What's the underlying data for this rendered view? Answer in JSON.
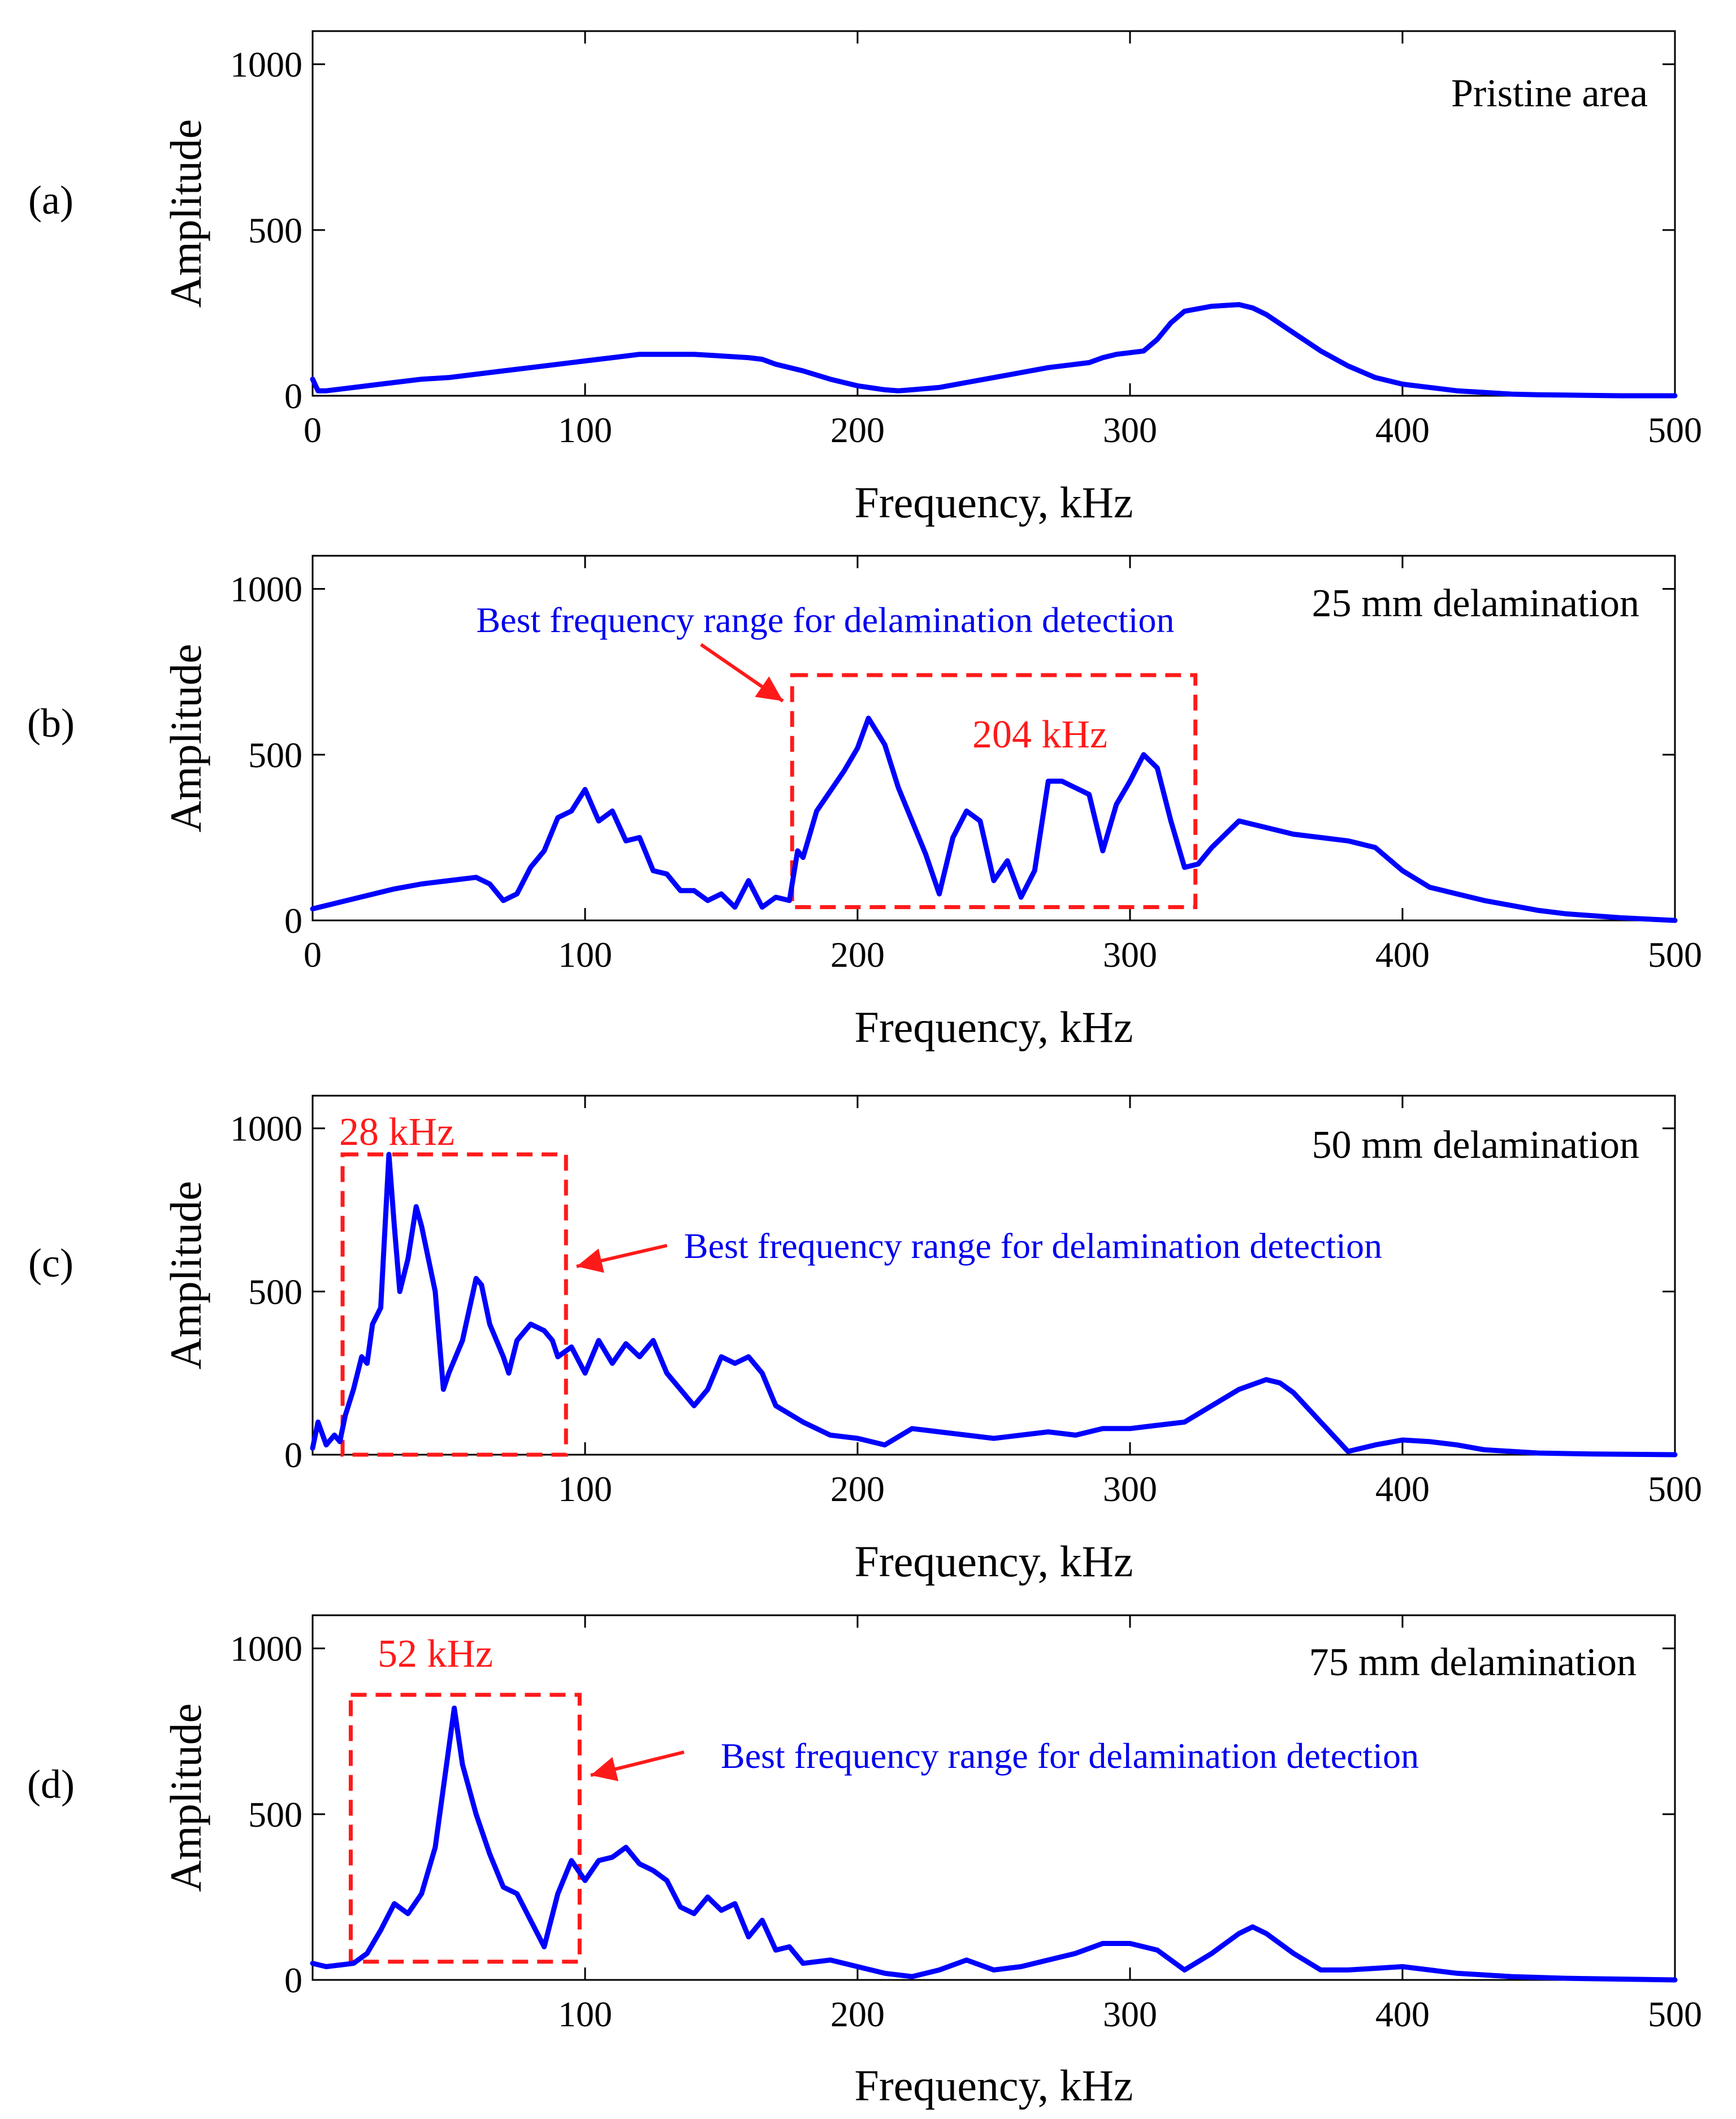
{
  "chart_data": [
    {
      "type": "line",
      "panel_label": "(a)",
      "annotation": "Pristine area",
      "xlabel": "Frequency, kHz",
      "ylabel": "Amplitude",
      "xlim": [
        0,
        500
      ],
      "ylim": [
        0,
        1100
      ],
      "xticks": [
        "0",
        "100",
        "200",
        "300",
        "400",
        "500"
      ],
      "yticks": [
        "0",
        "500",
        "1000"
      ],
      "series_color": "#0000ff",
      "x": [
        0,
        2,
        5,
        10,
        20,
        30,
        40,
        50,
        60,
        70,
        80,
        90,
        100,
        110,
        120,
        130,
        140,
        150,
        160,
        165,
        170,
        180,
        190,
        200,
        210,
        215,
        220,
        230,
        240,
        250,
        260,
        270,
        280,
        285,
        290,
        295,
        300,
        305,
        310,
        315,
        320,
        330,
        340,
        345,
        350,
        360,
        370,
        380,
        390,
        400,
        410,
        420,
        430,
        440,
        450,
        460,
        480,
        500
      ],
      "y": [
        50,
        15,
        15,
        20,
        30,
        40,
        50,
        55,
        65,
        75,
        85,
        95,
        105,
        115,
        125,
        125,
        125,
        120,
        115,
        110,
        95,
        75,
        50,
        30,
        18,
        15,
        18,
        25,
        40,
        55,
        70,
        85,
        95,
        100,
        115,
        125,
        130,
        135,
        170,
        220,
        255,
        270,
        275,
        265,
        245,
        190,
        135,
        90,
        55,
        35,
        25,
        15,
        10,
        5,
        3,
        2,
        0,
        0
      ]
    },
    {
      "type": "line",
      "panel_label": "(b)",
      "annotation": "25 mm delamination",
      "peak_label": "204 kHz",
      "range_note": "Best frequency range for delamination detection",
      "highlight_range": {
        "x": [
          176,
          324
        ],
        "y": [
          40,
          740
        ]
      },
      "xlabel": "Frequency, kHz",
      "ylabel": "Amplitude",
      "xlim": [
        0,
        500
      ],
      "ylim": [
        0,
        1100
      ],
      "xticks": [
        "0",
        "100",
        "200",
        "300",
        "400",
        "500"
      ],
      "yticks": [
        "0",
        "500",
        "1000"
      ],
      "series_color": "#0000ff",
      "x": [
        0,
        5,
        10,
        15,
        20,
        30,
        40,
        50,
        60,
        65,
        70,
        75,
        80,
        85,
        90,
        95,
        100,
        105,
        110,
        115,
        120,
        125,
        130,
        135,
        140,
        145,
        150,
        155,
        160,
        165,
        170,
        175,
        178,
        180,
        185,
        190,
        195,
        200,
        204,
        210,
        215,
        220,
        225,
        230,
        235,
        240,
        245,
        250,
        255,
        260,
        265,
        270,
        275,
        280,
        285,
        290,
        295,
        300,
        305,
        310,
        315,
        320,
        325,
        330,
        340,
        350,
        360,
        370,
        380,
        390,
        400,
        410,
        420,
        430,
        440,
        450,
        460,
        480,
        500
      ],
      "y": [
        35,
        45,
        55,
        65,
        75,
        95,
        110,
        120,
        130,
        110,
        60,
        80,
        160,
        210,
        310,
        330,
        395,
        300,
        330,
        240,
        250,
        150,
        140,
        90,
        90,
        60,
        80,
        40,
        120,
        40,
        70,
        60,
        210,
        190,
        330,
        390,
        450,
        520,
        610,
        530,
        400,
        300,
        200,
        80,
        250,
        330,
        300,
        120,
        180,
        70,
        150,
        420,
        420,
        400,
        380,
        210,
        350,
        420,
        500,
        460,
        300,
        160,
        170,
        220,
        300,
        280,
        260,
        250,
        240,
        220,
        150,
        100,
        80,
        60,
        45,
        30,
        20,
        8,
        0
      ]
    },
    {
      "type": "line",
      "panel_label": "(c)",
      "annotation": "50 mm delamination",
      "peak_label": "28 kHz",
      "range_note": "Best frequency range for delamination detection",
      "highlight_range": {
        "x": [
          11,
          93
        ],
        "y": [
          0,
          920
        ]
      },
      "xlabel": "Frequency, kHz",
      "ylabel": "Amplitude",
      "xlim": [
        0,
        500
      ],
      "ylim": [
        0,
        1100
      ],
      "xticks": [
        "100",
        "200",
        "300",
        "400",
        "500"
      ],
      "yticks": [
        "0",
        "500",
        "1000"
      ],
      "series_color": "#0000ff",
      "x": [
        0,
        2,
        5,
        8,
        10,
        12,
        15,
        18,
        20,
        22,
        25,
        28,
        30,
        32,
        35,
        38,
        40,
        45,
        48,
        50,
        55,
        60,
        62,
        65,
        70,
        72,
        75,
        80,
        85,
        88,
        90,
        95,
        100,
        105,
        110,
        115,
        120,
        125,
        130,
        135,
        140,
        145,
        150,
        155,
        160,
        165,
        170,
        180,
        190,
        200,
        210,
        220,
        230,
        240,
        250,
        260,
        270,
        280,
        290,
        300,
        310,
        320,
        330,
        340,
        350,
        355,
        360,
        370,
        380,
        385,
        390,
        400,
        410,
        420,
        430,
        450,
        470,
        500
      ],
      "y": [
        20,
        100,
        30,
        60,
        40,
        120,
        200,
        300,
        280,
        400,
        450,
        920,
        700,
        500,
        600,
        760,
        700,
        500,
        200,
        250,
        350,
        540,
        520,
        400,
        300,
        250,
        350,
        400,
        380,
        350,
        300,
        330,
        250,
        350,
        280,
        340,
        300,
        350,
        250,
        200,
        150,
        200,
        300,
        280,
        300,
        250,
        150,
        100,
        60,
        50,
        30,
        80,
        70,
        60,
        50,
        60,
        70,
        60,
        80,
        80,
        90,
        100,
        150,
        200,
        230,
        220,
        190,
        100,
        10,
        20,
        30,
        45,
        40,
        30,
        15,
        5,
        2,
        0
      ]
    },
    {
      "type": "line",
      "panel_label": "(d)",
      "annotation": "75 mm delamination",
      "peak_label": "52 kHz",
      "range_note": "Best frequency range for delamination detection",
      "highlight_range": {
        "x": [
          14,
          98
        ],
        "y": [
          55,
          860
        ]
      },
      "xlabel": "Frequency, kHz",
      "ylabel": "Amplitude",
      "xlim": [
        0,
        500
      ],
      "ylim": [
        0,
        1100
      ],
      "xticks": [
        "100",
        "200",
        "300",
        "400",
        "500"
      ],
      "yticks": [
        "0",
        "500",
        "1000"
      ],
      "series_color": "#0000ff",
      "x": [
        0,
        5,
        10,
        15,
        20,
        25,
        30,
        35,
        40,
        45,
        50,
        52,
        55,
        60,
        65,
        70,
        75,
        80,
        85,
        90,
        95,
        100,
        105,
        110,
        115,
        120,
        125,
        130,
        135,
        140,
        145,
        150,
        155,
        160,
        165,
        170,
        175,
        180,
        190,
        200,
        210,
        220,
        230,
        240,
        250,
        260,
        270,
        280,
        290,
        300,
        310,
        320,
        330,
        340,
        345,
        350,
        360,
        370,
        380,
        390,
        400,
        410,
        420,
        440,
        460,
        500
      ],
      "y": [
        50,
        40,
        45,
        50,
        80,
        150,
        230,
        200,
        260,
        400,
        700,
        820,
        650,
        500,
        380,
        280,
        260,
        180,
        100,
        260,
        360,
        300,
        360,
        370,
        400,
        350,
        330,
        300,
        220,
        200,
        250,
        210,
        230,
        130,
        180,
        90,
        100,
        50,
        60,
        40,
        20,
        10,
        30,
        60,
        30,
        40,
        60,
        80,
        110,
        110,
        90,
        30,
        80,
        140,
        160,
        140,
        80,
        30,
        30,
        35,
        40,
        30,
        20,
        10,
        5,
        0
      ]
    }
  ]
}
